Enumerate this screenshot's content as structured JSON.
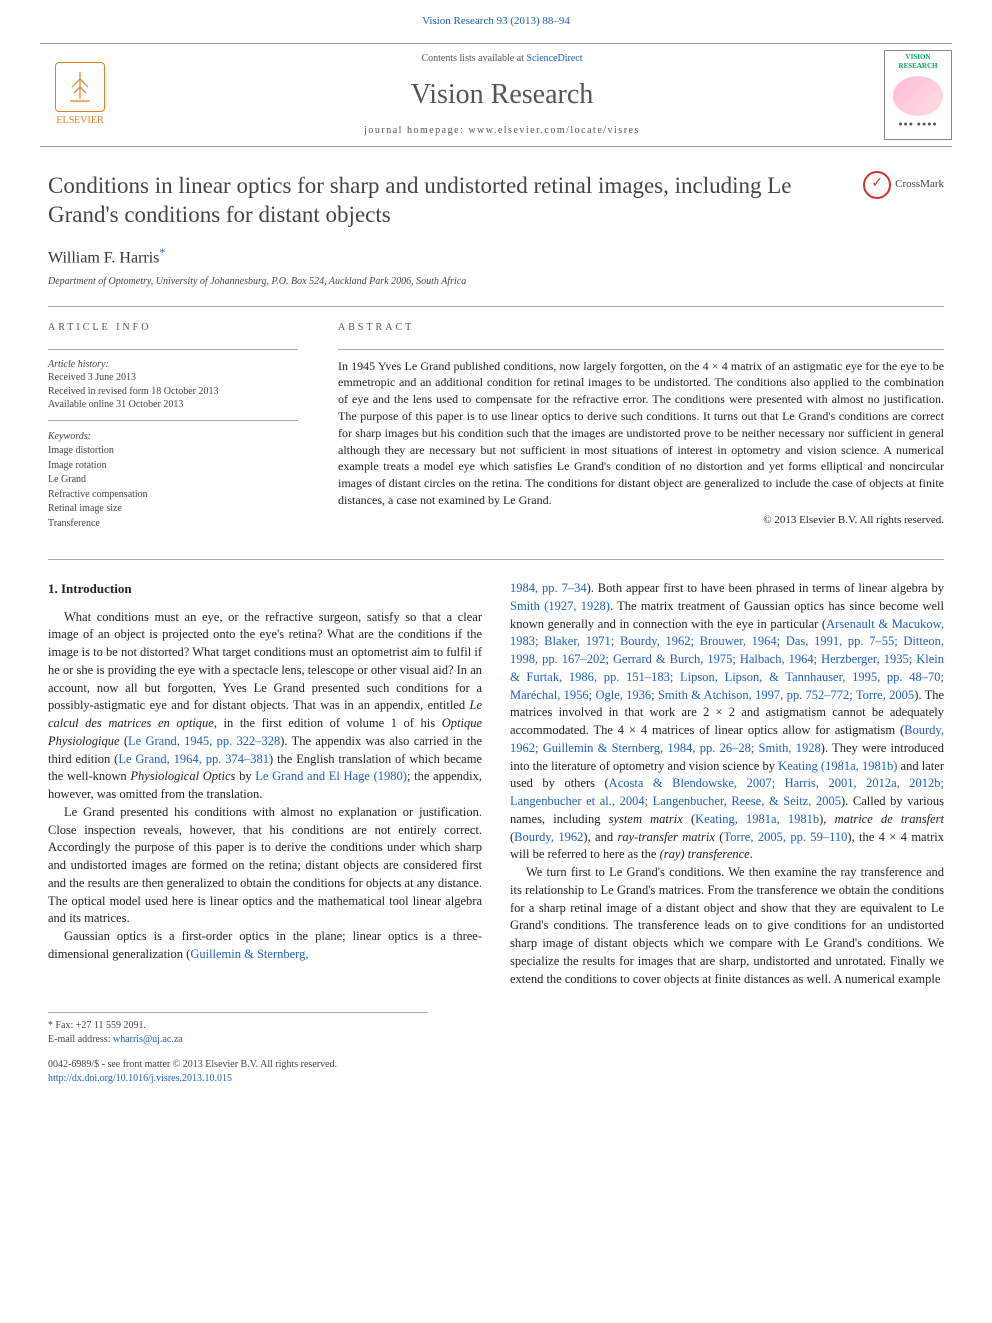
{
  "colors": {
    "accent": "#2060c0",
    "rule": "#aaa",
    "elsevier": "#e67e22"
  },
  "top": {
    "citation": "Vision Research 93 (2013) 88–94"
  },
  "header": {
    "contents_prefix": "Contents lists available at ",
    "contents_link": "ScienceDirect",
    "journal": "Vision Research",
    "homepage_prefix": "journal homepage: ",
    "homepage": "www.elsevier.com/locate/visres",
    "elsevier_label": "ELSEVIER",
    "cover_top": "VISION",
    "cover_top2": "RESEARCH"
  },
  "article": {
    "title": "Conditions in linear optics for sharp and undistorted retinal images, including Le Grand's conditions for distant objects",
    "crossmark": "CrossMark",
    "author": "William F. Harris",
    "author_mark": "*",
    "affiliation": "Department of Optometry, University of Johannesburg, P.O. Box 524, Auckland Park 2006, South Africa"
  },
  "info": {
    "head": "article info",
    "history_label": "Article history:",
    "received": "Received 3 June 2013",
    "revised": "Received in revised form 18 October 2013",
    "online": "Available online 31 October 2013",
    "keywords_label": "Keywords:",
    "keywords": [
      "Image distortion",
      "Image rotation",
      "Le Grand",
      "Refractive compensation",
      "Retinal image size",
      "Transference"
    ]
  },
  "abstract": {
    "head": "abstract",
    "text": "In 1945 Yves Le Grand published conditions, now largely forgotten, on the 4 × 4 matrix of an astigmatic eye for the eye to be emmetropic and an additional condition for retinal images to be undistorted. The conditions also applied to the combination of eye and the lens used to compensate for the refractive error. The conditions were presented with almost no justification. The purpose of this paper is to use linear optics to derive such conditions. It turns out that Le Grand's conditions are correct for sharp images but his condition such that the images are undistorted prove to be neither necessary nor sufficient in general although they are necessary but not sufficient in most situations of interest in optometry and vision science. A numerical example treats a model eye which satisfies Le Grand's condition of no distortion and yet forms elliptical and noncircular images of distant circles on the retina. The conditions for distant object are generalized to include the case of objects at finite distances, a case not examined by Le Grand.",
    "copyright": "© 2013 Elsevier B.V. All rights reserved."
  },
  "body": {
    "section_head": "1. Introduction",
    "left": [
      {
        "t": "What conditions must an eye, or the refractive surgeon, satisfy so that a clear image of an object is projected onto the eye's retina? What are the conditions if the image is to be not distorted? What target conditions must an optometrist aim to fulfil if he or she is providing the eye with a spectacle lens, telescope or other visual aid? In an account, now all but forgotten, Yves Le Grand presented such conditions for a possibly-astigmatic eye and for distant objects. That was in an appendix, entitled <span class='em'>Le calcul des matrices en optique</span>, in the first edition of volume 1 of his <span class='em'>Optique Physiologique</span> (<a>Le Grand, 1945, pp. 322–328</a>). The appendix was also carried in the third edition (<a>Le Grand, 1964, pp. 374–381</a>) the English translation of which became the well-known <span class='em'>Physiological Optics</span> by <a>Le Grand and El Hage (1980)</a>; the appendix, however, was omitted from the translation."
      },
      {
        "t": "Le Grand presented his conditions with almost no explanation or justification. Close inspection reveals, however, that his conditions are not entirely correct. Accordingly the purpose of this paper is to derive the conditions under which sharp and undistorted images are formed on the retina; distant objects are considered first and the results are then generalized to obtain the conditions for objects at any distance. The optical model used here is linear optics and the mathematical tool linear algebra and its matrices."
      },
      {
        "t": "Gaussian optics is a first-order optics in the plane; linear optics is a three-dimensional generalization (<a>Guillemin & Sternberg,</a>"
      }
    ],
    "right": [
      {
        "t": "<a>1984, pp. 7–34</a>). Both appear first to have been phrased in terms of linear algebra by <a>Smith (1927, 1928)</a>. The matrix treatment of Gaussian optics has since become well known generally and in connection with the eye in particular (<a>Arsenault & Macukow, 1983; Blaker, 1971; Bourdy, 1962; Brouwer, 1964; Das, 1991, pp. 7–55; Ditteon, 1998, pp. 167–202; Gerrard & Burch, 1975; Halbach, 1964; Herzberger, 1935; Klein & Furtak, 1986, pp. 151–183; Lipson, Lipson, & Tannhauser, 1995, pp. 48–70; Maréchal, 1956; Ogle, 1936; Smith & Atchison, 1997, pp. 752–772; Torre, 2005</a>). The matrices involved in that work are 2 × 2 and astigmatism cannot be adequately accommodated. The 4 × 4 matrices of linear optics allow for astigmatism (<a>Bourdy, 1962; Guillemin & Sternberg, 1984, pp. 26–28; Smith, 1928</a>). They were introduced into the literature of optometry and vision science by <a>Keating (1981a, 1981b)</a> and later used by others (<a>Acosta & Blendowske, 2007; Harris, 2001, 2012a, 2012b; Langenbucher et al., 2004; Langenbucher, Reese, & Seitz, 2005</a>). Called by various names, including <span class='em'>system matrix</span> (<a>Keating, 1981a, 1981b</a>), <span class='em'>matrice de transfert</span> (<a>Bourdy, 1962</a>), and <span class='em'>ray-transfer matrix</span> (<a>Torre, 2005, pp. 59–110</a>), the 4 × 4 matrix will be referred to here as the <span class='em'>(ray) transference</span>."
      },
      {
        "t": "We turn first to Le Grand's conditions. We then examine the ray transference and its relationship to Le Grand's matrices. From the transference we obtain the conditions for a sharp retinal image of a distant object and show that they are equivalent to Le Grand's conditions. The transference leads on to give conditions for an undistorted sharp image of distant objects which we compare with Le Grand's conditions. We specialize the results for images that are sharp, undistorted and unrotated. Finally we extend the conditions to cover objects at finite distances as well. A numerical example"
      }
    ]
  },
  "footnotes": {
    "fax": "* Fax: +27 11 559 2091.",
    "email_label": "E-mail address:",
    "email": "wharris@uj.ac.za"
  },
  "bottom": {
    "issn": "0042-6989/$ - see front matter © 2013 Elsevier B.V. All rights reserved.",
    "doi_label": "",
    "doi": "http://dx.doi.org/10.1016/j.visres.2013.10.015"
  }
}
